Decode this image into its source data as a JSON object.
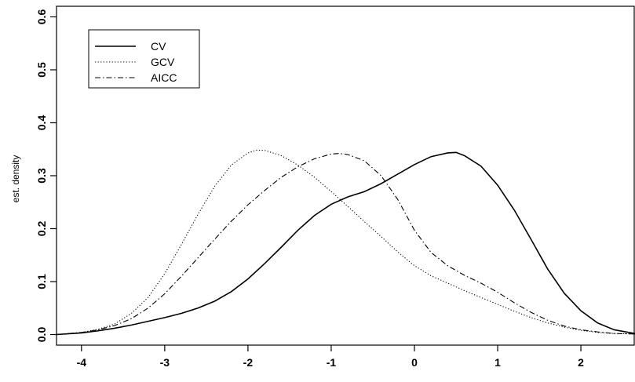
{
  "chart_data": {
    "type": "line",
    "title": "",
    "xlabel": "",
    "ylabel": "est. density",
    "xlim": [
      -4.3,
      2.65
    ],
    "ylim": [
      -0.02,
      0.62
    ],
    "xticks": [
      -4,
      -3,
      -2,
      -1,
      0,
      1,
      2
    ],
    "xtick_labels": [
      "-4",
      "-3",
      "-2",
      "-1",
      "0",
      "1",
      "2"
    ],
    "yticks": [
      0.0,
      0.1,
      0.2,
      0.3,
      0.4,
      0.5,
      0.6
    ],
    "ytick_labels": [
      "0.0",
      "0.1",
      "0.2",
      "0.3",
      "0.4",
      "0.5",
      "0.6"
    ],
    "grid": false,
    "legend": "top-left",
    "series": [
      {
        "name": "CV",
        "line_style": "solid",
        "color": "#000000",
        "x": [
          -4.3,
          -4.0,
          -3.8,
          -3.6,
          -3.4,
          -3.2,
          -3.0,
          -2.8,
          -2.6,
          -2.4,
          -2.2,
          -2.0,
          -1.8,
          -1.6,
          -1.4,
          -1.2,
          -1.0,
          -0.8,
          -0.6,
          -0.4,
          -0.2,
          0.0,
          0.2,
          0.4,
          0.5,
          0.6,
          0.8,
          1.0,
          1.2,
          1.4,
          1.6,
          1.8,
          2.0,
          2.2,
          2.4,
          2.65
        ],
        "y": [
          0.0,
          0.003,
          0.007,
          0.012,
          0.018,
          0.025,
          0.032,
          0.04,
          0.05,
          0.063,
          0.081,
          0.105,
          0.134,
          0.165,
          0.197,
          0.225,
          0.246,
          0.26,
          0.27,
          0.285,
          0.303,
          0.321,
          0.336,
          0.343,
          0.344,
          0.338,
          0.318,
          0.282,
          0.235,
          0.18,
          0.124,
          0.078,
          0.045,
          0.022,
          0.009,
          0.002
        ]
      },
      {
        "name": "GCV",
        "line_style": "dotted",
        "color": "#000000",
        "x": [
          -4.3,
          -4.0,
          -3.8,
          -3.6,
          -3.4,
          -3.2,
          -3.0,
          -2.8,
          -2.6,
          -2.4,
          -2.2,
          -2.0,
          -1.9,
          -1.8,
          -1.6,
          -1.4,
          -1.2,
          -1.0,
          -0.8,
          -0.6,
          -0.4,
          -0.2,
          0.0,
          0.2,
          0.4,
          0.6,
          0.8,
          1.0,
          1.2,
          1.4,
          1.6,
          1.8,
          2.0,
          2.2,
          2.4,
          2.65
        ],
        "y": [
          0.0,
          0.004,
          0.01,
          0.02,
          0.04,
          0.07,
          0.115,
          0.17,
          0.227,
          0.28,
          0.32,
          0.343,
          0.348,
          0.348,
          0.338,
          0.32,
          0.297,
          0.27,
          0.242,
          0.213,
          0.185,
          0.156,
          0.13,
          0.111,
          0.097,
          0.083,
          0.07,
          0.057,
          0.044,
          0.032,
          0.022,
          0.014,
          0.008,
          0.004,
          0.002,
          0.001
        ]
      },
      {
        "name": "AICC",
        "line_style": "dashdot",
        "color": "#000000",
        "x": [
          -4.3,
          -4.0,
          -3.8,
          -3.6,
          -3.4,
          -3.2,
          -3.0,
          -2.8,
          -2.6,
          -2.4,
          -2.2,
          -2.0,
          -1.8,
          -1.6,
          -1.4,
          -1.2,
          -1.0,
          -0.9,
          -0.8,
          -0.6,
          -0.4,
          -0.2,
          0.0,
          0.2,
          0.4,
          0.6,
          0.8,
          1.0,
          1.2,
          1.4,
          1.6,
          1.8,
          2.0,
          2.2,
          2.4,
          2.65
        ],
        "y": [
          0.0,
          0.004,
          0.009,
          0.017,
          0.03,
          0.05,
          0.077,
          0.11,
          0.145,
          0.18,
          0.214,
          0.245,
          0.272,
          0.297,
          0.317,
          0.332,
          0.341,
          0.342,
          0.34,
          0.328,
          0.3,
          0.255,
          0.197,
          0.155,
          0.13,
          0.112,
          0.097,
          0.08,
          0.06,
          0.042,
          0.027,
          0.016,
          0.009,
          0.005,
          0.002,
          0.001
        ]
      }
    ]
  }
}
